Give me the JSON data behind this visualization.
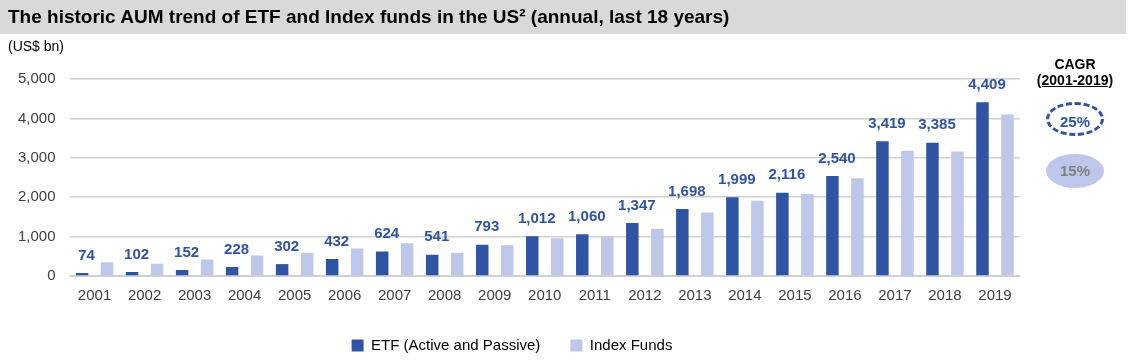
{
  "chart_data": {
    "type": "bar",
    "title": "The historic AUM trend of ETF and Index funds in the US² (annual, last 18 years)",
    "ylabel": "(US$ bn)",
    "categories": [
      "2001",
      "2002",
      "2003",
      "2004",
      "2005",
      "2006",
      "2007",
      "2008",
      "2009",
      "2010",
      "2011",
      "2012",
      "2013",
      "2014",
      "2015",
      "2016",
      "2017",
      "2018",
      "2019"
    ],
    "series": [
      {
        "name": "ETF (Active and Passive)",
        "color": "#2f54a4",
        "values": [
          74,
          102,
          152,
          228,
          302,
          432,
          624,
          541,
          793,
          1012,
          1060,
          1347,
          1698,
          1999,
          2116,
          2540,
          3419,
          3385,
          4409
        ],
        "value_labels": [
          "74",
          "102",
          "152",
          "228",
          "302",
          "432",
          "624",
          "541",
          "793",
          "1,012",
          "1,060",
          "1,347",
          "1,698",
          "1,999",
          "2,116",
          "2,540",
          "3,419",
          "3,385",
          "4,409"
        ]
      },
      {
        "name": "Index Funds",
        "color": "#bdc7e9",
        "values": [
          350,
          310,
          420,
          520,
          590,
          700,
          830,
          590,
          780,
          960,
          1000,
          1200,
          1610,
          1910,
          2080,
          2480,
          3180,
          3160,
          4100
        ]
      }
    ],
    "ylim": [
      0,
      5000
    ],
    "yticks": [
      0,
      {
        "value": 1000,
        "label": "1,000"
      },
      {
        "value": 2000,
        "label": "2,000"
      },
      {
        "value": 3000,
        "label": "3,000"
      },
      {
        "value": 4000,
        "label": "4,000"
      },
      {
        "value": 5000,
        "label": "5,000"
      }
    ],
    "grid": "y",
    "legend": "bottom",
    "annotations": [
      "CAGR",
      "(2001-2019)",
      "25%",
      "15%"
    ]
  }
}
